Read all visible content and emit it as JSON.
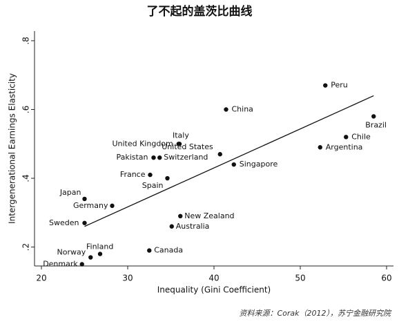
{
  "chart_data": {
    "type": "scatter",
    "title": "了不起的盖茨比曲线",
    "x_label": "Inequality (Gini Coefficient)",
    "y_label": "Intergenerational Earnings Elasticity",
    "source": "资料来源：Corak（2012），苏宁金融研究院",
    "xlim": [
      19.2,
      60.8
    ],
    "ylim": [
      0.145,
      0.828
    ],
    "xticks": [
      20,
      30,
      40,
      50,
      60
    ],
    "yticks": [
      {
        "value": 0.2,
        "label": ".2"
      },
      {
        "value": 0.4,
        "label": ".4"
      },
      {
        "value": 0.6,
        "label": ".6"
      },
      {
        "value": 0.8,
        "label": ".8"
      }
    ],
    "color": "#111111",
    "points": {
      "names": [
        "Peru",
        "China",
        "Brazil",
        "Chile",
        "Argentina",
        "United States",
        "Singapore",
        "Italy",
        "United Kingdom",
        "Pakistan",
        "Switzerland",
        "France",
        "Spain",
        "Japan",
        "Germany",
        "Sweden",
        "New Zealand",
        "Australia",
        "Canada",
        "Finland",
        "Norway",
        "Denmark"
      ],
      "x": [
        52.9,
        41.4,
        58.5,
        55.3,
        52.3,
        40.7,
        42.3,
        36.0,
        35.9,
        33.0,
        33.7,
        32.6,
        34.6,
        25.0,
        28.2,
        25.0,
        36.1,
        35.1,
        32.5,
        26.8,
        25.7,
        24.7
      ],
      "y": [
        0.67,
        0.6,
        0.58,
        0.52,
        0.49,
        0.47,
        0.44,
        0.5,
        0.5,
        0.46,
        0.46,
        0.41,
        0.4,
        0.34,
        0.32,
        0.27,
        0.29,
        0.26,
        0.19,
        0.18,
        0.17,
        0.15
      ]
    },
    "fit": {
      "x": [
        25,
        58.5
      ],
      "y": [
        0.26,
        0.64
      ]
    }
  }
}
